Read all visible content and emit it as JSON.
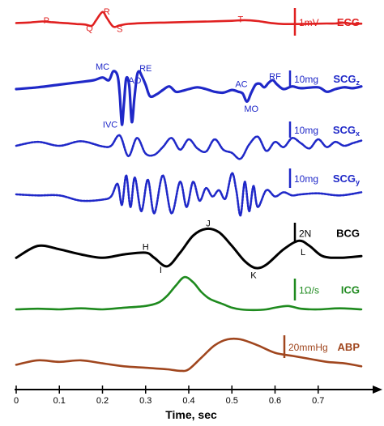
{
  "chart_data": {
    "type": "line",
    "xlabel": "Time, sec",
    "xlim": [
      0,
      0.8
    ],
    "xticks": [
      0,
      0.1,
      0.2,
      0.3,
      0.4,
      0.5,
      0.6,
      0.7
    ],
    "tick_labels": [
      "0",
      "0.1",
      "0.2",
      "0.3",
      "0.4",
      "0.5",
      "0.6",
      "0.7"
    ],
    "series": [
      {
        "name": "ECG",
        "sub": "",
        "color": "#e02020",
        "dash": "",
        "width": 2.6,
        "scale": {
          "text": "1mV",
          "value": 1,
          "unit": "mV"
        },
        "points": [
          [
            0,
            0.1
          ],
          [
            0.03,
            0.14
          ],
          [
            0.06,
            0.22
          ],
          [
            0.08,
            0.17
          ],
          [
            0.1,
            0.12
          ],
          [
            0.12,
            0.08
          ],
          [
            0.14,
            0.02
          ],
          [
            0.16,
            -0.02
          ],
          [
            0.175,
            -0.12
          ],
          [
            0.185,
            0.3
          ],
          [
            0.2,
            0.95
          ],
          [
            0.21,
            0.5
          ],
          [
            0.225,
            -0.18
          ],
          [
            0.24,
            -0.08
          ],
          [
            0.26,
            0.03
          ],
          [
            0.3,
            0.1
          ],
          [
            0.35,
            0.14
          ],
          [
            0.4,
            0.18
          ],
          [
            0.45,
            0.22
          ],
          [
            0.5,
            0.27
          ],
          [
            0.53,
            0.32
          ],
          [
            0.56,
            0.25
          ],
          [
            0.59,
            0.1
          ],
          [
            0.62,
            0.02
          ],
          [
            0.68,
            0.04
          ],
          [
            0.72,
            0.06
          ],
          [
            0.74,
            0.06
          ],
          [
            0.76,
            0.12
          ],
          [
            0.78,
            0.04
          ],
          [
            0.8,
            0.05
          ]
        ],
        "annotations": [
          {
            "text": "P",
            "x": 0.07,
            "y": 0.32
          },
          {
            "text": "R",
            "x": 0.21,
            "y": 0.99
          },
          {
            "text": "Q",
            "x": 0.17,
            "y": -0.28
          },
          {
            "text": "S",
            "x": 0.24,
            "y": -0.34
          },
          {
            "text": "T",
            "x": 0.52,
            "y": 0.42
          }
        ]
      },
      {
        "name": "SCG",
        "sub": "z",
        "color": "#1f28c8",
        "dash": "",
        "width": 3.2,
        "scale": {
          "text": "10mg",
          "value": 10,
          "unit": "mg"
        },
        "points": [
          [
            0,
            0.0
          ],
          [
            0.05,
            0.2
          ],
          [
            0.1,
            0.5
          ],
          [
            0.15,
            0.8
          ],
          [
            0.18,
            1.0
          ],
          [
            0.2,
            1.3
          ],
          [
            0.215,
            1.0
          ],
          [
            0.225,
            2.0
          ],
          [
            0.235,
            1.5
          ],
          [
            0.24,
            -0.6
          ],
          [
            0.245,
            -4.0
          ],
          [
            0.25,
            -1.5
          ],
          [
            0.255,
            1.2
          ],
          [
            0.262,
            0.4
          ],
          [
            0.268,
            -3.7
          ],
          [
            0.274,
            -1.0
          ],
          [
            0.28,
            1.5
          ],
          [
            0.285,
            2.0
          ],
          [
            0.29,
            1.6
          ],
          [
            0.3,
            0.5
          ],
          [
            0.31,
            -0.8
          ],
          [
            0.325,
            -0.6
          ],
          [
            0.34,
            -0.1
          ],
          [
            0.355,
            0.3
          ],
          [
            0.37,
            -0.3
          ],
          [
            0.385,
            -0.2
          ],
          [
            0.4,
            0.0
          ],
          [
            0.42,
            0.2
          ],
          [
            0.44,
            0.0
          ],
          [
            0.46,
            -0.3
          ],
          [
            0.48,
            -0.4
          ],
          [
            0.5,
            -0.1
          ],
          [
            0.515,
            -0.3
          ],
          [
            0.525,
            -0.5
          ],
          [
            0.535,
            -1.4
          ],
          [
            0.545,
            -0.4
          ],
          [
            0.555,
            0.5
          ],
          [
            0.565,
            0.6
          ],
          [
            0.575,
            0.2
          ],
          [
            0.585,
            0.7
          ],
          [
            0.595,
            1.0
          ],
          [
            0.605,
            0.5
          ],
          [
            0.62,
            0.0
          ],
          [
            0.64,
            0.3
          ],
          [
            0.66,
            0.1
          ],
          [
            0.7,
            0.2
          ],
          [
            0.72,
            -0.3
          ],
          [
            0.74,
            0.0
          ],
          [
            0.76,
            0.2
          ],
          [
            0.78,
            0.1
          ],
          [
            0.8,
            0.3
          ]
        ],
        "annotations": [
          {
            "text": "MC",
            "x": 0.2,
            "y": 2.55
          },
          {
            "text": "AO",
            "x": 0.275,
            "y": 1.0
          },
          {
            "text": "RE",
            "x": 0.3,
            "y": 2.35
          },
          {
            "text": "IVC",
            "x": 0.218,
            "y": -3.95
          },
          {
            "text": "AC",
            "x": 0.522,
            "y": 0.6
          },
          {
            "text": "RF",
            "x": 0.6,
            "y": 1.45
          },
          {
            "text": "MO",
            "x": 0.545,
            "y": -2.2
          }
        ]
      },
      {
        "name": "SCG",
        "sub": "x",
        "color": "#1f28c8",
        "dash": "2.2 1.6",
        "width": 2.6,
        "scale": {
          "text": "10mg",
          "value": 10,
          "unit": "mg"
        },
        "points": [
          [
            0,
            0.0
          ],
          [
            0.05,
            0.3
          ],
          [
            0.1,
            0.0
          ],
          [
            0.15,
            0.35
          ],
          [
            0.2,
            -0.05
          ],
          [
            0.22,
            0.0
          ],
          [
            0.24,
            0.8
          ],
          [
            0.26,
            -0.8
          ],
          [
            0.28,
            0.6
          ],
          [
            0.3,
            -0.6
          ],
          [
            0.32,
            -0.7
          ],
          [
            0.34,
            -0.1
          ],
          [
            0.36,
            0.6
          ],
          [
            0.38,
            -0.3
          ],
          [
            0.4,
            0.5
          ],
          [
            0.42,
            -0.2
          ],
          [
            0.44,
            -0.45
          ],
          [
            0.46,
            0.5
          ],
          [
            0.48,
            -0.3
          ],
          [
            0.5,
            -0.55
          ],
          [
            0.52,
            -1.0
          ],
          [
            0.54,
            0.1
          ],
          [
            0.56,
            0.7
          ],
          [
            0.58,
            -0.4
          ],
          [
            0.6,
            0.3
          ],
          [
            0.62,
            -0.1
          ],
          [
            0.64,
            0.6
          ],
          [
            0.66,
            0.2
          ],
          [
            0.68,
            -0.2
          ],
          [
            0.7,
            0.5
          ],
          [
            0.72,
            -0.1
          ],
          [
            0.74,
            0.3
          ],
          [
            0.76,
            0.0
          ],
          [
            0.78,
            0.2
          ],
          [
            0.8,
            0.4
          ]
        ],
        "annotations": []
      },
      {
        "name": "SCG",
        "sub": "y",
        "color": "#1f28c8",
        "dash": "2.2 1.6",
        "width": 2.6,
        "scale": {
          "text": "10mg",
          "value": 10,
          "unit": "mg"
        },
        "points": [
          [
            0,
            0.0
          ],
          [
            0.05,
            -0.05
          ],
          [
            0.1,
            -0.05
          ],
          [
            0.15,
            -0.3
          ],
          [
            0.2,
            -0.25
          ],
          [
            0.22,
            -0.1
          ],
          [
            0.235,
            0.5
          ],
          [
            0.245,
            -0.5
          ],
          [
            0.255,
            0.9
          ],
          [
            0.265,
            -0.6
          ],
          [
            0.275,
            0.8
          ],
          [
            0.29,
            -0.8
          ],
          [
            0.305,
            0.7
          ],
          [
            0.32,
            -0.9
          ],
          [
            0.34,
            0.9
          ],
          [
            0.36,
            -0.9
          ],
          [
            0.38,
            0.6
          ],
          [
            0.395,
            -0.6
          ],
          [
            0.41,
            0.6
          ],
          [
            0.425,
            -0.3
          ],
          [
            0.44,
            0.3
          ],
          [
            0.455,
            -0.1
          ],
          [
            0.47,
            0.2
          ],
          [
            0.485,
            -0.2
          ],
          [
            0.5,
            1.0
          ],
          [
            0.51,
            0.2
          ],
          [
            0.52,
            -1.0
          ],
          [
            0.53,
            0.6
          ],
          [
            0.54,
            -0.8
          ],
          [
            0.55,
            0.4
          ],
          [
            0.56,
            -0.6
          ],
          [
            0.58,
            0.2
          ],
          [
            0.6,
            -0.1
          ],
          [
            0.62,
            0.1
          ],
          [
            0.64,
            -0.05
          ],
          [
            0.66,
            0.0
          ],
          [
            0.7,
            0.05
          ],
          [
            0.75,
            -0.05
          ],
          [
            0.8,
            0.1
          ]
        ],
        "annotations": []
      },
      {
        "name": "BCG",
        "sub": "",
        "color": "#000000",
        "dash": "",
        "width": 3.0,
        "scale": {
          "text": "2N",
          "value": 2,
          "unit": "N"
        },
        "points": [
          [
            0,
            -0.3
          ],
          [
            0.05,
            0.4
          ],
          [
            0.1,
            0.2
          ],
          [
            0.15,
            -0.1
          ],
          [
            0.2,
            -0.3
          ],
          [
            0.25,
            -0.1
          ],
          [
            0.3,
            0.0
          ],
          [
            0.32,
            -0.3
          ],
          [
            0.35,
            -0.8
          ],
          [
            0.38,
            0.0
          ],
          [
            0.41,
            1.0
          ],
          [
            0.44,
            1.4
          ],
          [
            0.47,
            1.2
          ],
          [
            0.5,
            0.4
          ],
          [
            0.53,
            -0.5
          ],
          [
            0.555,
            -0.9
          ],
          [
            0.58,
            -0.7
          ],
          [
            0.62,
            0.2
          ],
          [
            0.655,
            0.7
          ],
          [
            0.68,
            0.4
          ],
          [
            0.71,
            -0.2
          ],
          [
            0.75,
            -0.3
          ],
          [
            0.8,
            -0.2
          ]
        ],
        "annotations": [
          {
            "text": "H",
            "x": 0.3,
            "y": 0.35
          },
          {
            "text": "I",
            "x": 0.335,
            "y": -1.0
          },
          {
            "text": "J",
            "x": 0.445,
            "y": 1.75
          },
          {
            "text": "K",
            "x": 0.55,
            "y": -1.3
          },
          {
            "text": "L",
            "x": 0.665,
            "y": 0.05
          }
        ]
      },
      {
        "name": "ICG",
        "sub": "",
        "color": "#1e8a1e",
        "dash": "",
        "width": 2.6,
        "scale": {
          "text": "1Ω/s",
          "value": 1,
          "unit": "Ω/s"
        },
        "points": [
          [
            0,
            0.0
          ],
          [
            0.05,
            0.02
          ],
          [
            0.1,
            0.0
          ],
          [
            0.15,
            0.03
          ],
          [
            0.2,
            0.0
          ],
          [
            0.25,
            0.05
          ],
          [
            0.3,
            0.1
          ],
          [
            0.33,
            0.2
          ],
          [
            0.35,
            0.4
          ],
          [
            0.37,
            0.7
          ],
          [
            0.39,
            0.95
          ],
          [
            0.41,
            0.8
          ],
          [
            0.43,
            0.5
          ],
          [
            0.45,
            0.3
          ],
          [
            0.48,
            0.15
          ],
          [
            0.5,
            0.05
          ],
          [
            0.52,
            0.0
          ],
          [
            0.55,
            -0.02
          ],
          [
            0.58,
            0.0
          ],
          [
            0.6,
            0.05
          ],
          [
            0.63,
            0.1
          ],
          [
            0.66,
            0.02
          ],
          [
            0.7,
            0.0
          ],
          [
            0.75,
            0.03
          ],
          [
            0.8,
            0.0
          ]
        ],
        "annotations": []
      },
      {
        "name": "ABP",
        "sub": "",
        "color": "#a0461e",
        "dash": "",
        "width": 2.6,
        "scale": {
          "text": "20mmHg",
          "value": 20,
          "unit": "mmHg"
        },
        "points": [
          [
            0,
            0.15
          ],
          [
            0.05,
            0.3
          ],
          [
            0.1,
            0.25
          ],
          [
            0.15,
            0.3
          ],
          [
            0.2,
            0.2
          ],
          [
            0.25,
            0.1
          ],
          [
            0.3,
            0.05
          ],
          [
            0.35,
            0.0
          ],
          [
            0.38,
            -0.05
          ],
          [
            0.4,
            0.0
          ],
          [
            0.43,
            0.4
          ],
          [
            0.46,
            0.8
          ],
          [
            0.49,
            1.0
          ],
          [
            0.52,
            1.0
          ],
          [
            0.56,
            0.8
          ],
          [
            0.6,
            0.55
          ],
          [
            0.64,
            0.45
          ],
          [
            0.68,
            0.35
          ],
          [
            0.72,
            0.25
          ],
          [
            0.76,
            0.2
          ],
          [
            0.8,
            0.1
          ]
        ],
        "annotations": []
      }
    ]
  }
}
